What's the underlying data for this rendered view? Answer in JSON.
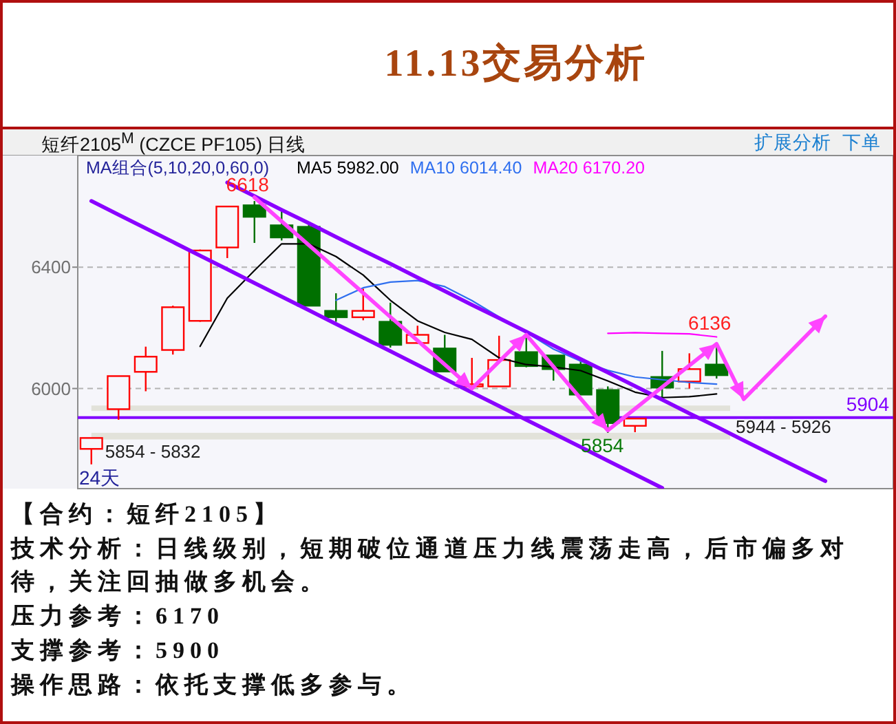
{
  "chart_data": [
    {
      "type": "candlestick",
      "title": "11.13交易分析",
      "subtitle": "短纤2105$^{M}$ (CZCE PF105) 日线",
      "legend_title": "MA组合(5,10,20,0,60,0)",
      "legend": "top left",
      "categories": [
        null,
        null,
        null,
        null,
        null,
        null,
        null,
        null,
        null,
        null,
        null,
        null,
        null,
        null,
        null,
        null,
        null,
        null,
        null,
        null,
        null,
        null,
        null,
        null,
        null,
        null,
        null,
        null,
        null,
        null
      ],
      "ohlc": [
        [
          5801,
          5837,
          5750,
          5837
        ],
        [
          5932,
          6041,
          5897,
          6041
        ],
        [
          6055,
          6138,
          5991,
          6105
        ],
        [
          6127,
          6273,
          6112,
          6268
        ],
        [
          6223,
          6458,
          6220,
          6455
        ],
        [
          6465,
          6600,
          6430,
          6600
        ],
        [
          6604,
          6618,
          6480,
          6566
        ],
        [
          6538,
          6586,
          6488,
          6498
        ],
        [
          6533,
          6541,
          6273,
          6273
        ],
        [
          6256,
          6314,
          6220,
          6235
        ],
        [
          6235,
          6329,
          6225,
          6256
        ],
        [
          6220,
          6283,
          6135,
          6144
        ],
        [
          6150,
          6207,
          6148,
          6177
        ],
        [
          6132,
          6177,
          6056,
          6056
        ],
        [
          6007,
          6101,
          5995,
          6014
        ],
        [
          6007,
          6174,
          6007,
          6094
        ],
        [
          6120,
          6170,
          6070,
          6074
        ],
        [
          6109,
          6109,
          6026,
          6064
        ],
        [
          6079,
          6094,
          5980,
          5980
        ],
        [
          5995,
          6007,
          5854,
          5886
        ],
        [
          5877,
          5901,
          5856,
          5901
        ],
        [
          6038,
          6124,
          5965,
          6003
        ],
        [
          6023,
          6116,
          6000,
          6064
        ],
        [
          6079,
          6136,
          6033,
          6044
        ],
        null,
        null,
        null,
        null,
        null,
        null
      ],
      "colors": [
        "#ff0000",
        "#ff0000",
        "#ff0000",
        "#ff0000",
        "#ff0000",
        "#ff0000",
        "#007000",
        "#007000",
        "#007000",
        "#007000",
        "#ff0000",
        "#007000",
        "#ff0000",
        "#007000",
        "#ff0000",
        "#ff0000",
        "#007000",
        "#007000",
        "#007000",
        "#007000",
        "#ff0000",
        "#007000",
        "#ff0000",
        "#007000",
        null,
        null,
        null,
        null,
        null,
        null
      ],
      "ylim": [
        5670,
        6768
      ],
      "yticks": [
        6000,
        6400
      ],
      "grid": "y",
      "tick_labels": "y",
      "series": [
        {
          "name": "MA5 5982.00",
          "type": "line",
          "color": "#000000",
          "values": [
            null,
            null,
            null,
            null,
            6139,
            6298,
            6389,
            6477,
            6477,
            6435,
            6374,
            6291,
            6223,
            6185,
            6162,
            6101,
            6079,
            6071,
            6059,
            6025,
            5988,
            5970,
            5973,
            5982,
            null,
            null,
            null,
            null,
            null,
            null
          ]
        },
        {
          "name": "MA10 6014.40",
          "type": "line",
          "color": "#2f6fef",
          "values": [
            null,
            null,
            null,
            null,
            null,
            null,
            null,
            null,
            null,
            6291,
            6332,
            6351,
            6356,
            6336,
            6290,
            6236,
            6185,
            6130,
            6090,
            6060,
            6038,
            6029,
            6020,
            6014.4,
            null,
            null,
            null,
            null,
            null,
            null
          ]
        },
        {
          "name": "MA20 6170.20",
          "type": "line",
          "color": "#ff00ff",
          "values": [
            null,
            null,
            null,
            null,
            null,
            null,
            null,
            null,
            null,
            null,
            null,
            null,
            null,
            null,
            null,
            null,
            null,
            null,
            null,
            6182,
            6184,
            6182,
            6180,
            6170.2,
            null,
            null,
            null,
            null,
            null,
            null
          ]
        },
        {
          "type": "line",
          "color": "#8a00ff",
          "values": [
            null,
            null,
            null,
            null,
            null,
            6679,
            6634,
            6589,
            6545,
            6500,
            6455,
            6411,
            6366,
            6321,
            6276,
            6232,
            6187,
            6142,
            6097,
            6053,
            6008,
            5963,
            5918,
            5874,
            5829,
            5784,
            5739,
            5695,
            null,
            null
          ]
        },
        {
          "type": "line",
          "color": "#8a00ff",
          "values": [
            6618,
            6573,
            6528,
            6483,
            6438,
            6393,
            6348,
            6303,
            6258,
            6213,
            6168,
            6123,
            6078,
            6032,
            5987,
            5942,
            5897,
            5852,
            5807,
            5762,
            5717,
            5672,
            null,
            null,
            null,
            null,
            null,
            null,
            null,
            null
          ]
        },
        {
          "type": "line",
          "color": "#ff44ff",
          "values": [
            null,
            null,
            null,
            null,
            null,
            null,
            6630,
            6551,
            6473,
            6394,
            6315,
            6236,
            6158,
            6079,
            6000,
            6089,
            6177,
            6072,
            5967,
            5862,
            5933,
            6005,
            6076,
            6147,
            5965,
            6056,
            6147,
            6238,
            null,
            null
          ]
        }
      ],
      "ref_lines": [
        {
          "axis": "y",
          "value": 5904,
          "label": "5904",
          "color": "#8000ff"
        }
      ],
      "bands": [
        {
          "axis": "y",
          "from": 5832,
          "to": 5854,
          "label": "5854 - 5832",
          "color": "#e2e2da"
        },
        {
          "axis": "y",
          "from": 5926,
          "to": 5944,
          "label": "5944 - 5926",
          "color": "#e2e2da"
        }
      ],
      "annotations": [
        "扩展分析",
        "下单",
        {
          "text": "6618",
          "y": 6618
        },
        {
          "text": "5854",
          "y": 5854
        },
        {
          "text": "6136",
          "y": 6136
        },
        "24天"
      ]
    },
    {
      "type": "other",
      "annotations": [
        "【合约：短纤2105】",
        "技术分析：日线级别，短期破位通道压力线震荡走高，后市偏多对待，关注回抽做多机会。",
        "压力参考：6170",
        "支撑参考：5900",
        "操作思路：依托支撑低多参与。"
      ]
    }
  ]
}
